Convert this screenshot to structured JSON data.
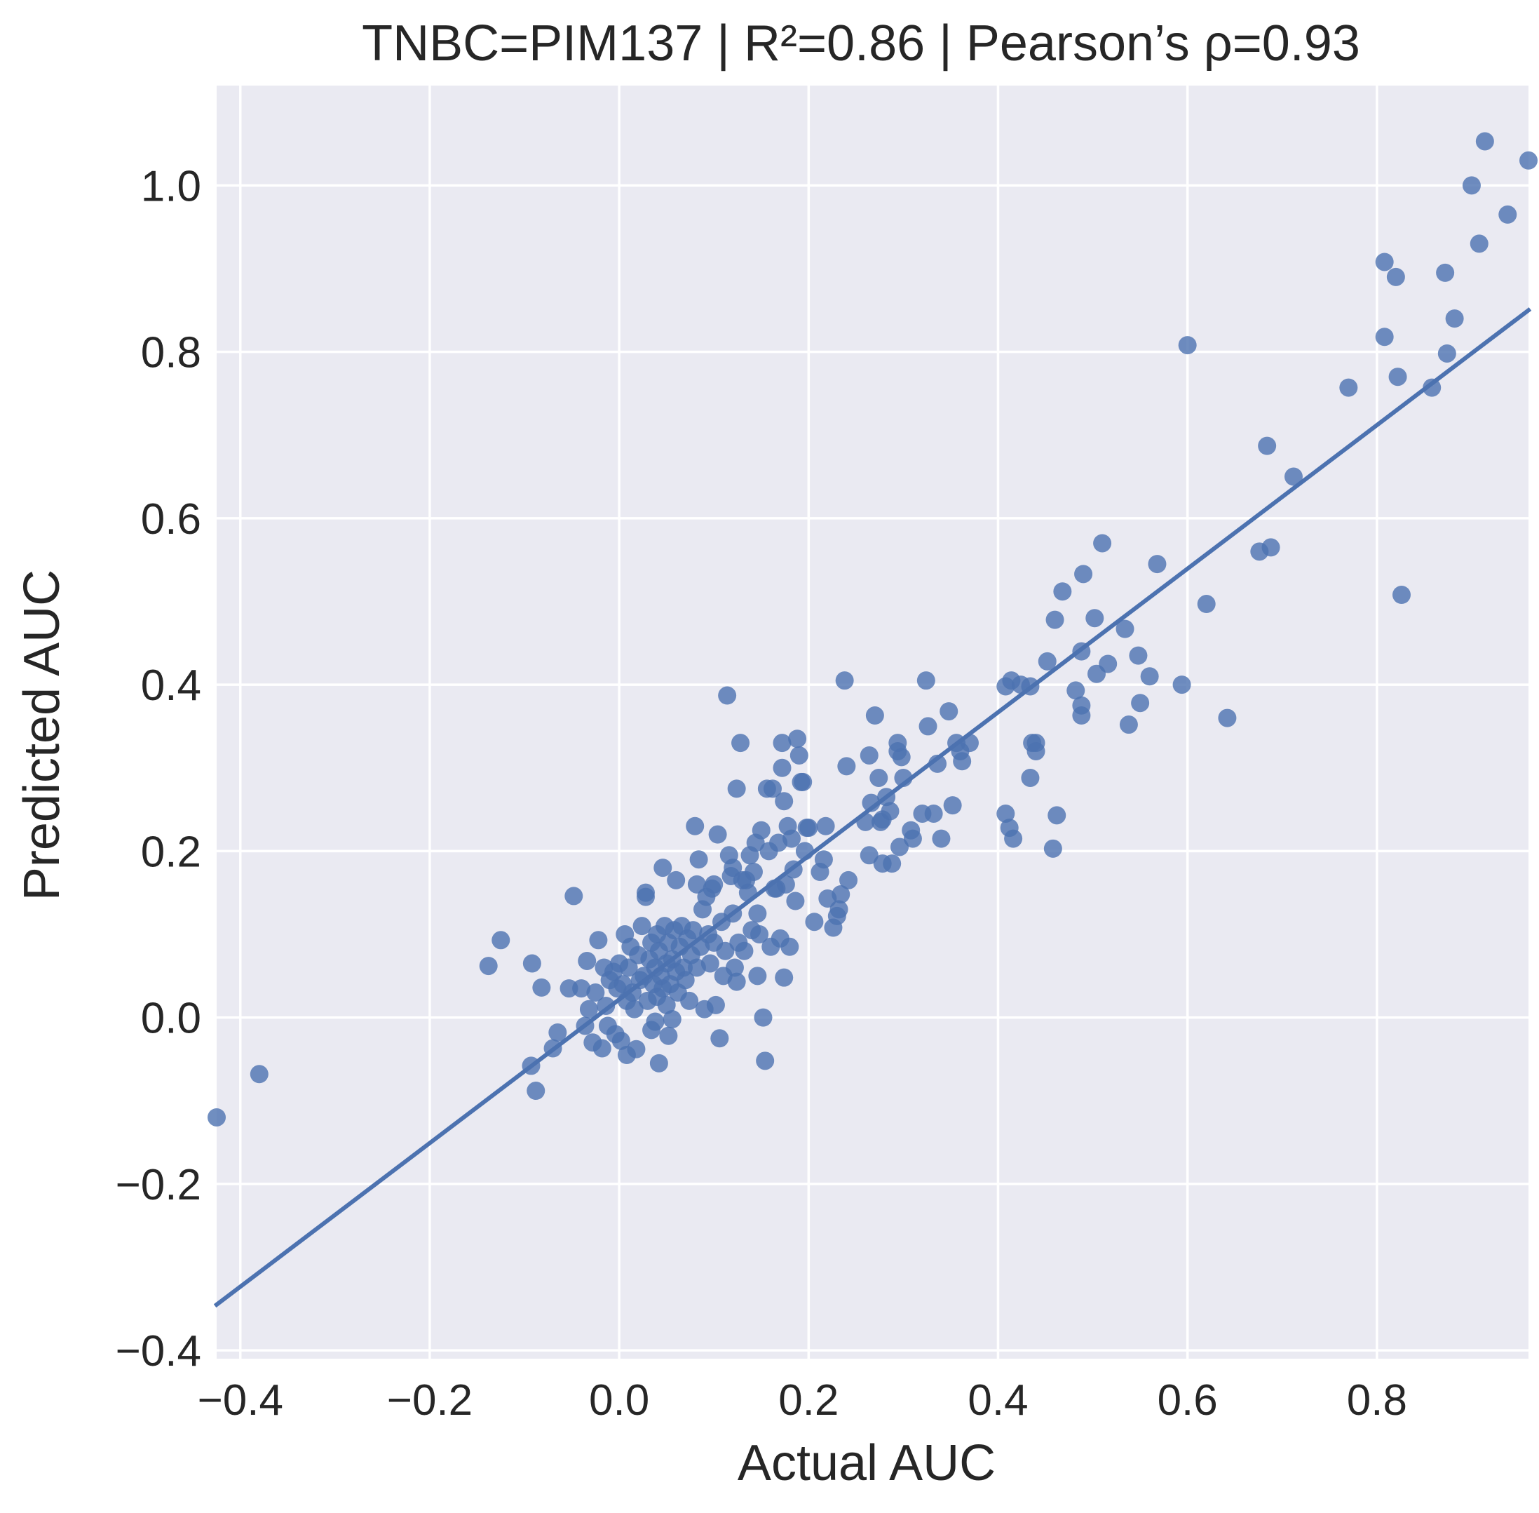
{
  "chart_data": {
    "type": "scatter",
    "title": "TNBC=PIM137 | R²=0.86 | Pearson’s ρ=0.93",
    "xlabel": "Actual AUC",
    "ylabel": "Predicted AUC",
    "xlim": [
      -0.425,
      0.96
    ],
    "ylim": [
      -0.41,
      1.12
    ],
    "xticks": [
      -0.4,
      -0.2,
      0.0,
      0.2,
      0.4,
      0.6,
      0.8
    ],
    "xtick_labels": [
      "−0.4",
      "−0.2",
      "0.0",
      "0.2",
      "0.4",
      "0.6",
      "0.8"
    ],
    "yticks": [
      -0.4,
      -0.2,
      0.0,
      0.2,
      0.4,
      0.6,
      0.8,
      1.0
    ],
    "ytick_labels": [
      "−0.4",
      "−0.2",
      "0.0",
      "0.2",
      "0.4",
      "0.6",
      "0.8",
      "1.0"
    ],
    "grid": true,
    "background": "#eaeaf2",
    "grid_color": "#ffffff",
    "point_color": "#4c72b0",
    "line_color": "#4c72b0",
    "fit_line": {
      "x": [
        -0.425,
        0.96
      ],
      "y": [
        -0.345,
        0.85
      ]
    },
    "points": [
      [
        -0.425,
        -0.12
      ],
      [
        -0.38,
        -0.068
      ],
      [
        -0.138,
        0.062
      ],
      [
        -0.125,
        0.093
      ],
      [
        -0.093,
        -0.058
      ],
      [
        -0.092,
        0.065
      ],
      [
        -0.088,
        -0.088
      ],
      [
        -0.082,
        0.036
      ],
      [
        -0.07,
        -0.037
      ],
      [
        -0.065,
        -0.018
      ],
      [
        -0.053,
        0.035
      ],
      [
        -0.048,
        0.146
      ],
      [
        -0.04,
        0.035
      ],
      [
        -0.036,
        -0.01
      ],
      [
        -0.034,
        0.068
      ],
      [
        -0.032,
        0.01
      ],
      [
        -0.028,
        -0.03
      ],
      [
        -0.025,
        0.03
      ],
      [
        -0.022,
        0.093
      ],
      [
        -0.018,
        -0.037
      ],
      [
        -0.016,
        0.06
      ],
      [
        -0.014,
        0.014
      ],
      [
        -0.012,
        -0.01
      ],
      [
        -0.01,
        0.045
      ],
      [
        -0.006,
        0.055
      ],
      [
        -0.004,
        -0.02
      ],
      [
        -0.002,
        0.035
      ],
      [
        0.0,
        0.065
      ],
      [
        0.002,
        -0.028
      ],
      [
        0.004,
        0.04
      ],
      [
        0.006,
        0.1
      ],
      [
        0.008,
        0.02
      ],
      [
        0.008,
        -0.045
      ],
      [
        0.01,
        0.06
      ],
      [
        0.012,
        0.085
      ],
      [
        0.014,
        0.03
      ],
      [
        0.016,
        0.01
      ],
      [
        0.018,
        -0.038
      ],
      [
        0.02,
        0.075
      ],
      [
        0.022,
        0.045
      ],
      [
        0.024,
        0.11
      ],
      [
        0.026,
        0.05
      ],
      [
        0.028,
        0.15
      ],
      [
        0.028,
        0.145
      ],
      [
        0.03,
        0.02
      ],
      [
        0.032,
        0.07
      ],
      [
        0.034,
        0.09
      ],
      [
        0.034,
        -0.015
      ],
      [
        0.036,
        0.04
      ],
      [
        0.038,
        0.06
      ],
      [
        0.038,
        -0.005
      ],
      [
        0.04,
        0.1
      ],
      [
        0.04,
        0.025
      ],
      [
        0.042,
        0.08
      ],
      [
        0.042,
        -0.055
      ],
      [
        0.044,
        0.05
      ],
      [
        0.046,
        0.18
      ],
      [
        0.046,
        0.035
      ],
      [
        0.048,
        0.11
      ],
      [
        0.05,
        0.065
      ],
      [
        0.05,
        0.015
      ],
      [
        0.052,
        0.09
      ],
      [
        0.052,
        -0.022
      ],
      [
        0.054,
        0.04
      ],
      [
        0.056,
        0.07
      ],
      [
        0.056,
        -0.002
      ],
      [
        0.058,
        0.105
      ],
      [
        0.06,
        0.165
      ],
      [
        0.06,
        0.055
      ],
      [
        0.062,
        0.03
      ],
      [
        0.064,
        0.085
      ],
      [
        0.066,
        0.11
      ],
      [
        0.068,
        0.06
      ],
      [
        0.07,
        0.045
      ],
      [
        0.072,
        0.095
      ],
      [
        0.074,
        0.02
      ],
      [
        0.076,
        0.075
      ],
      [
        0.078,
        0.105
      ],
      [
        0.08,
        0.23
      ],
      [
        0.082,
        0.06
      ],
      [
        0.082,
        0.16
      ],
      [
        0.084,
        0.19
      ],
      [
        0.086,
        0.085
      ],
      [
        0.088,
        0.13
      ],
      [
        0.09,
        0.01
      ],
      [
        0.092,
        0.145
      ],
      [
        0.094,
        0.1
      ],
      [
        0.096,
        0.065
      ],
      [
        0.098,
        0.155
      ],
      [
        0.1,
        0.16
      ],
      [
        0.1,
        0.09
      ],
      [
        0.102,
        0.015
      ],
      [
        0.104,
        0.22
      ],
      [
        0.106,
        -0.025
      ],
      [
        0.108,
        0.115
      ],
      [
        0.11,
        0.05
      ],
      [
        0.112,
        0.08
      ],
      [
        0.114,
        0.387
      ],
      [
        0.116,
        0.195
      ],
      [
        0.118,
        0.17
      ],
      [
        0.12,
        0.125
      ],
      [
        0.12,
        0.18
      ],
      [
        0.122,
        0.06
      ],
      [
        0.124,
        0.275
      ],
      [
        0.124,
        0.043
      ],
      [
        0.126,
        0.09
      ],
      [
        0.128,
        0.33
      ],
      [
        0.13,
        0.165
      ],
      [
        0.132,
        0.08
      ],
      [
        0.134,
        0.165
      ],
      [
        0.136,
        0.15
      ],
      [
        0.138,
        0.195
      ],
      [
        0.14,
        0.105
      ],
      [
        0.142,
        0.175
      ],
      [
        0.144,
        0.21
      ],
      [
        0.146,
        0.125
      ],
      [
        0.146,
        0.05
      ],
      [
        0.148,
        0.1
      ],
      [
        0.15,
        0.225
      ],
      [
        0.152,
        0.0
      ],
      [
        0.154,
        -0.052
      ],
      [
        0.156,
        0.275
      ],
      [
        0.158,
        0.2
      ],
      [
        0.16,
        0.085
      ],
      [
        0.162,
        0.275
      ],
      [
        0.164,
        0.155
      ],
      [
        0.166,
        0.155
      ],
      [
        0.168,
        0.21
      ],
      [
        0.17,
        0.095
      ],
      [
        0.172,
        0.33
      ],
      [
        0.172,
        0.3
      ],
      [
        0.174,
        0.26
      ],
      [
        0.174,
        0.048
      ],
      [
        0.176,
        0.16
      ],
      [
        0.178,
        0.23
      ],
      [
        0.18,
        0.085
      ],
      [
        0.182,
        0.215
      ],
      [
        0.184,
        0.178
      ],
      [
        0.186,
        0.14
      ],
      [
        0.188,
        0.335
      ],
      [
        0.19,
        0.315
      ],
      [
        0.192,
        0.283
      ],
      [
        0.194,
        0.283
      ],
      [
        0.196,
        0.2
      ],
      [
        0.198,
        0.228
      ],
      [
        0.2,
        0.228
      ],
      [
        0.206,
        0.115
      ],
      [
        0.212,
        0.175
      ],
      [
        0.216,
        0.19
      ],
      [
        0.218,
        0.23
      ],
      [
        0.22,
        0.143
      ],
      [
        0.226,
        0.108
      ],
      [
        0.23,
        0.122
      ],
      [
        0.232,
        0.13
      ],
      [
        0.234,
        0.148
      ],
      [
        0.238,
        0.405
      ],
      [
        0.24,
        0.302
      ],
      [
        0.242,
        0.165
      ],
      [
        0.26,
        0.235
      ],
      [
        0.264,
        0.195
      ],
      [
        0.264,
        0.315
      ],
      [
        0.266,
        0.258
      ],
      [
        0.27,
        0.363
      ],
      [
        0.274,
        0.288
      ],
      [
        0.276,
        0.235
      ],
      [
        0.278,
        0.238
      ],
      [
        0.278,
        0.185
      ],
      [
        0.282,
        0.265
      ],
      [
        0.286,
        0.248
      ],
      [
        0.288,
        0.185
      ],
      [
        0.294,
        0.33
      ],
      [
        0.294,
        0.32
      ],
      [
        0.296,
        0.205
      ],
      [
        0.298,
        0.313
      ],
      [
        0.3,
        0.288
      ],
      [
        0.308,
        0.225
      ],
      [
        0.31,
        0.215
      ],
      [
        0.32,
        0.245
      ],
      [
        0.324,
        0.405
      ],
      [
        0.326,
        0.35
      ],
      [
        0.332,
        0.245
      ],
      [
        0.336,
        0.305
      ],
      [
        0.34,
        0.215
      ],
      [
        0.348,
        0.368
      ],
      [
        0.352,
        0.255
      ],
      [
        0.356,
        0.33
      ],
      [
        0.36,
        0.32
      ],
      [
        0.362,
        0.308
      ],
      [
        0.37,
        0.33
      ],
      [
        0.408,
        0.398
      ],
      [
        0.408,
        0.245
      ],
      [
        0.412,
        0.228
      ],
      [
        0.414,
        0.405
      ],
      [
        0.416,
        0.215
      ],
      [
        0.424,
        0.4
      ],
      [
        0.434,
        0.398
      ],
      [
        0.434,
        0.288
      ],
      [
        0.436,
        0.33
      ],
      [
        0.44,
        0.33
      ],
      [
        0.44,
        0.32
      ],
      [
        0.452,
        0.428
      ],
      [
        0.458,
        0.203
      ],
      [
        0.46,
        0.478
      ],
      [
        0.462,
        0.243
      ],
      [
        0.468,
        0.512
      ],
      [
        0.482,
        0.393
      ],
      [
        0.488,
        0.44
      ],
      [
        0.488,
        0.375
      ],
      [
        0.488,
        0.363
      ],
      [
        0.49,
        0.533
      ],
      [
        0.502,
        0.48
      ],
      [
        0.504,
        0.413
      ],
      [
        0.51,
        0.57
      ],
      [
        0.516,
        0.425
      ],
      [
        0.534,
        0.467
      ],
      [
        0.538,
        0.352
      ],
      [
        0.548,
        0.435
      ],
      [
        0.55,
        0.378
      ],
      [
        0.56,
        0.41
      ],
      [
        0.568,
        0.545
      ],
      [
        0.594,
        0.4
      ],
      [
        0.6,
        0.808
      ],
      [
        0.62,
        0.497
      ],
      [
        0.642,
        0.36
      ],
      [
        0.676,
        0.56
      ],
      [
        0.684,
        0.687
      ],
      [
        0.688,
        0.565
      ],
      [
        0.712,
        0.65
      ],
      [
        0.77,
        0.757
      ],
      [
        0.808,
        0.908
      ],
      [
        0.808,
        0.818
      ],
      [
        0.82,
        0.89
      ],
      [
        0.822,
        0.77
      ],
      [
        0.826,
        0.508
      ],
      [
        0.858,
        0.757
      ],
      [
        0.872,
        0.895
      ],
      [
        0.874,
        0.798
      ],
      [
        0.882,
        0.84
      ],
      [
        0.9,
        1.0
      ],
      [
        0.908,
        0.93
      ],
      [
        0.914,
        1.053
      ],
      [
        0.938,
        0.965
      ],
      [
        0.96,
        1.03
      ]
    ]
  }
}
